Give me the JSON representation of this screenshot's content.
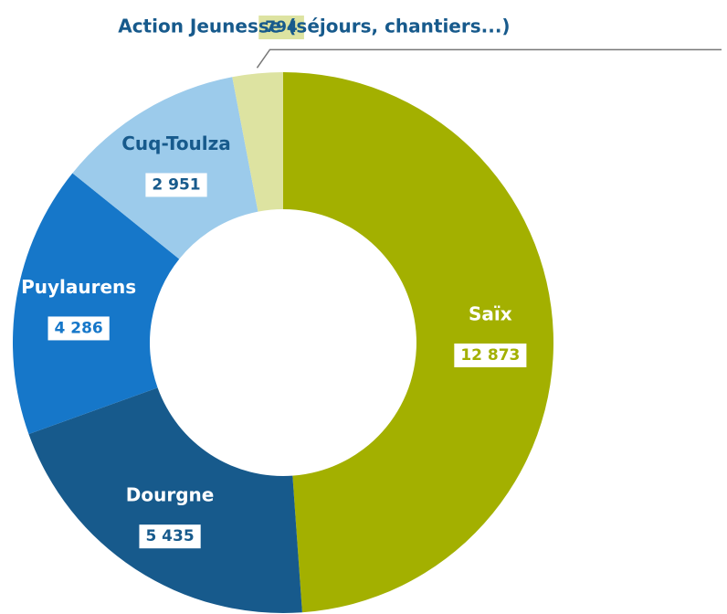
{
  "chart_data": {
    "type": "donut",
    "categories": [
      "Saïx",
      "Dourgne",
      "Puylaurens",
      "Cuq-Toulza",
      "Action Jeunesse (séjours, chantiers...)"
    ],
    "values": [
      12873,
      5435,
      4286,
      2951,
      794
    ],
    "value_labels": [
      "12 873",
      "5 435",
      "4 286",
      "2 951",
      "794"
    ],
    "colors": [
      "#a3b000",
      "#175a8c",
      "#1677c9",
      "#9ccbeb",
      "#dde3a1"
    ]
  }
}
